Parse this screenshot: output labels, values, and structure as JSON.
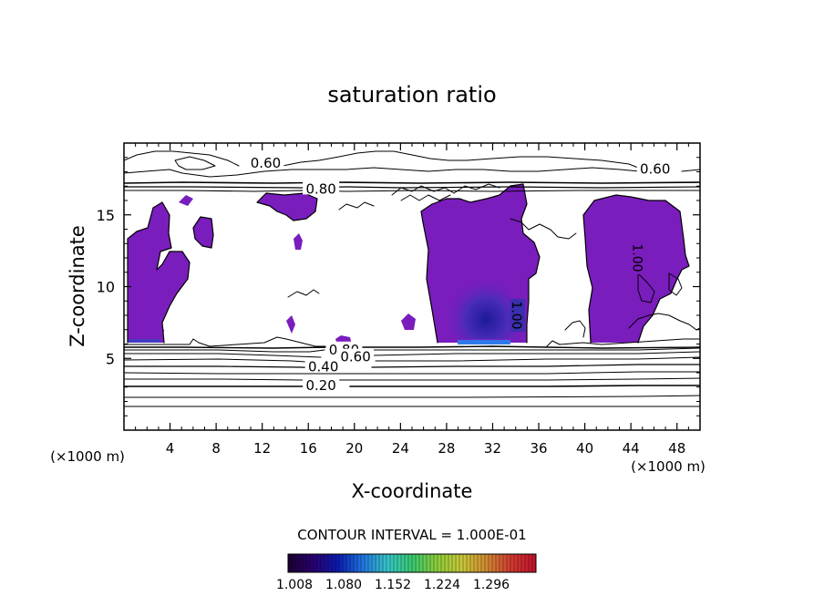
{
  "chart_data": {
    "type": "contour",
    "title": "saturation ratio",
    "xlabel": "X-coordinate",
    "ylabel": "Z-coordinate",
    "x_unit_left": "(×1000 m)",
    "x_unit_right": "(×1000 m)",
    "xlim": [
      0,
      50
    ],
    "ylim": [
      0,
      20
    ],
    "x_ticks": [
      4,
      8,
      12,
      16,
      20,
      24,
      28,
      32,
      36,
      40,
      44,
      48
    ],
    "y_ticks": [
      5,
      10,
      15
    ],
    "contour_interval_text": "CONTOUR INTERVAL = 1.000E-01",
    "contour_line_labels": [
      {
        "text": "0.60",
        "x": 12.3,
        "z": 18.6
      },
      {
        "text": "0.60",
        "x": 46.1,
        "z": 18.2
      },
      {
        "text": "0.80",
        "x": 17.1,
        "z": 16.8
      },
      {
        "text": "0.80",
        "x": 19.1,
        "z": 5.6
      },
      {
        "text": "0.60",
        "x": 20.1,
        "z": 5.1
      },
      {
        "text": "0.40",
        "x": 17.3,
        "z": 4.4
      },
      {
        "text": "0.20",
        "x": 17.1,
        "z": 3.1
      },
      {
        "text": "1.00",
        "x": 34.1,
        "z": 8.0
      },
      {
        "text": "1.00",
        "x": 44.6,
        "z": 12.0
      }
    ],
    "colorbar": {
      "tick_labels": [
        "1.008",
        "1.080",
        "1.152",
        "1.224",
        "1.296"
      ],
      "colors": [
        "#1a0033",
        "#2a006e",
        "#0a1ab0",
        "#1f74e0",
        "#36c4c8",
        "#38c870",
        "#8ccc3a",
        "#c8c838",
        "#d08a30",
        "#d03a30",
        "#c0102a"
      ]
    },
    "shaded_color": "#7a1dbd",
    "core_color": "#3a2fae",
    "cloud_regions": [
      {
        "name": "left-tower",
        "x_range": [
          0.3,
          5.8
        ],
        "z_range": [
          6.0,
          15.6
        ]
      },
      {
        "name": "center-cloud",
        "x_range": [
          25.4,
          34.7
        ],
        "z_range": [
          6.0,
          17.4
        ]
      },
      {
        "name": "right-cloud",
        "x_range": [
          39.8,
          50.0
        ],
        "z_range": [
          6.0,
          15.9
        ]
      }
    ]
  }
}
